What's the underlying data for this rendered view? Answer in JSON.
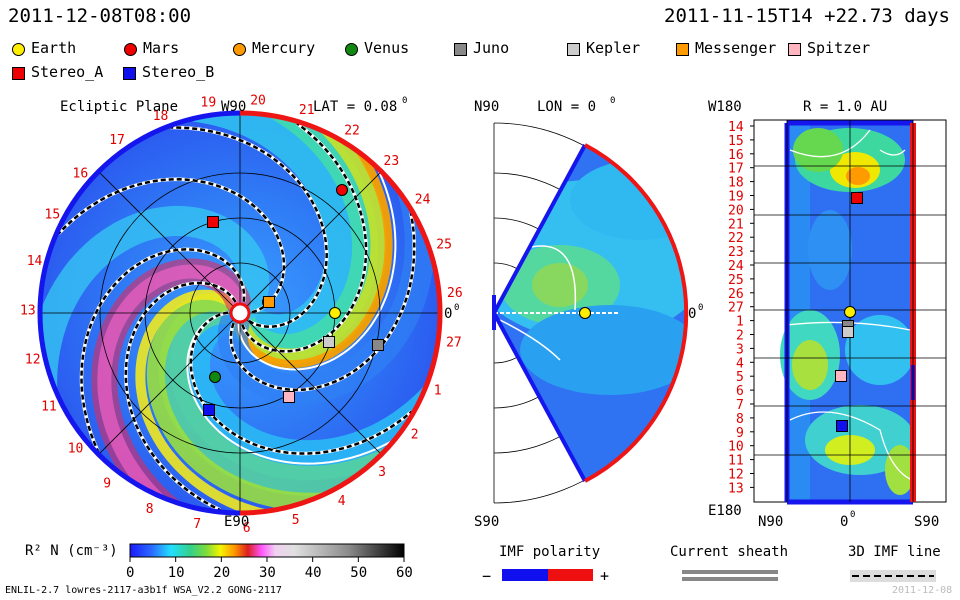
{
  "header": {
    "left_time": "2011-12-08T08:00",
    "right_time": "2011-11-15T14 +22.73 days"
  },
  "legend": [
    {
      "label": "Earth",
      "color": "#ffee00",
      "shape": "dot"
    },
    {
      "label": "Mars",
      "color": "#ee0000",
      "shape": "dot"
    },
    {
      "label": "Mercury",
      "color": "#ff9900",
      "shape": "dot"
    },
    {
      "label": "Venus",
      "color": "#118811",
      "shape": "dot"
    },
    {
      "label": "Juno",
      "color": "#888888",
      "shape": "square"
    },
    {
      "label": "Kepler",
      "color": "#cccccc",
      "shape": "square"
    },
    {
      "label": "Messenger",
      "color": "#ff9900",
      "shape": "square"
    },
    {
      "label": "Spitzer",
      "color": "#ffb6c1",
      "shape": "square"
    },
    {
      "label": "Stereo_A",
      "color": "#ee0000",
      "shape": "square"
    },
    {
      "label": "Stereo_B",
      "color": "#1010ee",
      "shape": "square"
    }
  ],
  "ecliptic": {
    "title": "Ecliptic Plane",
    "w90": "W90",
    "lat": "LAT = 0.08",
    "deg": "0",
    "zero": "0",
    "e90": "E90",
    "carrington": [
      "19",
      "20",
      "21",
      "22",
      "23",
      "24",
      "25",
      "26",
      "27",
      "1",
      "2",
      "3",
      "4",
      "5",
      "6",
      "7",
      "8",
      "9",
      "10",
      "11",
      "12",
      "13",
      "14",
      "15",
      "16",
      "17",
      "18"
    ]
  },
  "lon_panel": {
    "n90": "N90",
    "title": "LON = 0",
    "deg": "0",
    "zero": "0",
    "s90": "S90"
  },
  "r_panel": {
    "w180": "W180",
    "title": "R = 1.0 AU",
    "e180": "E180",
    "n90": "N90",
    "zero": "0",
    "deg": "0",
    "s90": "S90",
    "rows": [
      "14",
      "15",
      "16",
      "17",
      "18",
      "19",
      "20",
      "21",
      "22",
      "23",
      "24",
      "25",
      "26",
      "27",
      "1",
      "2",
      "3",
      "4",
      "5",
      "6",
      "7",
      "8",
      "9",
      "10",
      "11",
      "12",
      "13"
    ]
  },
  "colorbar": {
    "label": "R² N (cm⁻³)",
    "ticks": [
      "0",
      "10",
      "20",
      "30",
      "40",
      "50",
      "60"
    ]
  },
  "imf": {
    "title": "IMF polarity",
    "minus": "−",
    "plus": "+",
    "neg_color": "#1010ee",
    "pos_color": "#ee1010"
  },
  "sheath": {
    "title": "Current sheath"
  },
  "imf3d": {
    "title": "3D IMF line"
  },
  "footer": {
    "left": "ENLIL-2.7 lowres-2117-a3b1f WSA_V2.2 GONG-2117",
    "right": "2011-12-08"
  }
}
